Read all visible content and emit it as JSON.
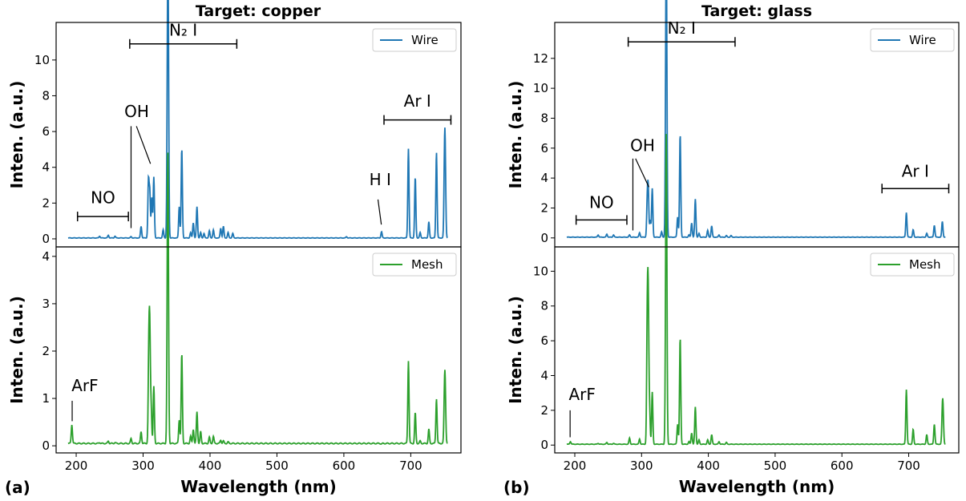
{
  "panel_letters": [
    "(a)",
    "(b)"
  ],
  "chart_data": [
    {
      "type": "line",
      "title": "Target: copper",
      "xlabel": "Wavelength (nm)",
      "xlim": [
        170,
        775
      ],
      "xticks": [
        200,
        300,
        400,
        500,
        600,
        700
      ],
      "subplots": [
        {
          "ylabel": "Inten. (a.u.)",
          "ylim": [
            -0.45,
            12.1
          ],
          "yticks": [
            0,
            2,
            4,
            6,
            8,
            10
          ],
          "color": "#1f77b4",
          "legend": "Wire",
          "legend_loc": "upper right",
          "baseline": 0.05,
          "peaks": [
            [
              235,
              0.15
            ],
            [
              248,
              0.2
            ],
            [
              258,
              0.15
            ],
            [
              282,
              0.12
            ],
            [
              297,
              0.7
            ],
            [
              308,
              3.25
            ],
            [
              310,
              2.6
            ],
            [
              313,
              2.3
            ],
            [
              316,
              3.45
            ],
            [
              330,
              0.5
            ],
            [
              336.5,
              8.1
            ],
            [
              337.5,
              10.6
            ],
            [
              354,
              1.8
            ],
            [
              357.8,
              5.05
            ],
            [
              371,
              0.35
            ],
            [
              375,
              0.9
            ],
            [
              380.5,
              1.8
            ],
            [
              386,
              0.35
            ],
            [
              391,
              0.3
            ],
            [
              399,
              0.45
            ],
            [
              405,
              0.5
            ],
            [
              416,
              0.6
            ],
            [
              420,
              0.7
            ],
            [
              427,
              0.35
            ],
            [
              434,
              0.3
            ],
            [
              604,
              0.12
            ],
            [
              656.3,
              0.4
            ],
            [
              696.5,
              5.05
            ],
            [
              706.7,
              3.45
            ],
            [
              714,
              0.35
            ],
            [
              727,
              0.95
            ],
            [
              738.4,
              4.85
            ],
            [
              750.4,
              3.75
            ],
            [
              751.5,
              3.8
            ]
          ],
          "annotations": [
            {
              "text": "N₂ I",
              "type": "bracket",
              "x1": 280,
              "x2": 440,
              "y": 10.9,
              "text_y": 11.35
            },
            {
              "text": "NO",
              "type": "bracket",
              "x1": 202,
              "x2": 278,
              "y": 1.25,
              "text_y": 2.0
            },
            {
              "text": "OH",
              "type": "label",
              "x": 272,
              "y": 6.8,
              "lines": [
                [
                  282,
                  6.3,
                  282,
                  0.6
                ],
                [
                  290,
                  6.3,
                  311,
                  4.2
                ]
              ]
            },
            {
              "text": "H I",
              "type": "label",
              "x": 638,
              "y": 3.0,
              "lines": [
                [
                  651,
                  2.2,
                  656,
                  0.8
                ]
              ]
            },
            {
              "text": "Ar I",
              "type": "bracket",
              "x1": 660,
              "x2": 760,
              "y": 6.65,
              "text_y": 7.4
            }
          ],
          "x_end": 755
        },
        {
          "ylabel": "Inten. (a.u.)",
          "ylim": [
            -0.15,
            4.2
          ],
          "yticks": [
            0,
            1,
            2,
            3,
            4
          ],
          "color": "#2ca02c",
          "legend": "Mesh",
          "legend_loc": "upper right",
          "baseline": 0.05,
          "peaks": [
            [
              193.5,
              0.45
            ],
            [
              235,
              0.07
            ],
            [
              248,
              0.1
            ],
            [
              258,
              0.07
            ],
            [
              282,
              0.15
            ],
            [
              297,
              0.3
            ],
            [
              308.5,
              1.9
            ],
            [
              310,
              2.25
            ],
            [
              312,
              0.8
            ],
            [
              316,
              1.25
            ],
            [
              336.5,
              2.9
            ],
            [
              337.3,
              3.95
            ],
            [
              354,
              0.55
            ],
            [
              357.8,
              1.95
            ],
            [
              371,
              0.2
            ],
            [
              375,
              0.35
            ],
            [
              380.5,
              0.72
            ],
            [
              386,
              0.3
            ],
            [
              399,
              0.18
            ],
            [
              405,
              0.2
            ],
            [
              416,
              0.12
            ],
            [
              420,
              0.1
            ],
            [
              427,
              0.08
            ],
            [
              656.3,
              0.04
            ],
            [
              696.5,
              1.8
            ],
            [
              706.7,
              0.7
            ],
            [
              714,
              0.1
            ],
            [
              727,
              0.35
            ],
            [
              738.4,
              1.0
            ],
            [
              750.4,
              0.98
            ],
            [
              751.5,
              1.0
            ]
          ],
          "annotations": [
            {
              "text": "ArF",
              "type": "label",
              "x": 193,
              "y": 1.15,
              "lines": [
                [
                  194,
                  0.95,
                  194,
                  0.52
                ]
              ]
            }
          ],
          "x_end": 755
        }
      ]
    },
    {
      "type": "line",
      "title": "Target: glass",
      "xlabel": "Wavelength (nm)",
      "xlim": [
        170,
        775
      ],
      "xticks": [
        200,
        300,
        400,
        500,
        600,
        700
      ],
      "subplots": [
        {
          "ylabel": "Inten. (a.u.)",
          "ylim": [
            -0.6,
            14.4
          ],
          "yticks": [
            0,
            2,
            4,
            6,
            8,
            10,
            12
          ],
          "color": "#1f77b4",
          "legend": "Wire",
          "legend_loc": "upper right",
          "baseline": 0.05,
          "peaks": [
            [
              235,
              0.2
            ],
            [
              248,
              0.25
            ],
            [
              258,
              0.2
            ],
            [
              282,
              0.2
            ],
            [
              297,
              0.35
            ],
            [
              308.5,
              2.3
            ],
            [
              310,
              3.1
            ],
            [
              313,
              1.2
            ],
            [
              316,
              3.3
            ],
            [
              330,
              0.4
            ],
            [
              336.5,
              9.5
            ],
            [
              337.3,
              12.5
            ],
            [
              354,
              1.4
            ],
            [
              357.8,
              6.95
            ],
            [
              371,
              0.2
            ],
            [
              375,
              1.0
            ],
            [
              380.5,
              2.6
            ],
            [
              386,
              0.3
            ],
            [
              399,
              0.5
            ],
            [
              405,
              0.8
            ],
            [
              416,
              0.2
            ],
            [
              427,
              0.15
            ],
            [
              434,
              0.15
            ],
            [
              696.5,
              1.7
            ],
            [
              706.7,
              0.55
            ],
            [
              727,
              0.3
            ],
            [
              738.4,
              0.85
            ],
            [
              750.4,
              1.1
            ]
          ],
          "annotations": [
            {
              "text": "N₂ I",
              "type": "bracket",
              "x1": 280,
              "x2": 440,
              "y": 13.1,
              "text_y": 13.65
            },
            {
              "text": "NO",
              "type": "bracket",
              "x1": 202,
              "x2": 278,
              "y": 1.2,
              "text_y": 2.0
            },
            {
              "text": "OH",
              "type": "label",
              "x": 283,
              "y": 5.8,
              "lines": [
                [
                  287,
                  5.3,
                  287,
                  0.5
                ],
                [
                  291,
                  5.3,
                  311,
                  3.4
                ]
              ]
            },
            {
              "text": "Ar I",
              "type": "bracket",
              "x1": 660,
              "x2": 760,
              "y": 3.3,
              "text_y": 4.1
            }
          ],
          "x_end": 755
        },
        {
          "ylabel": "Inten. (a.u.)",
          "ylim": [
            -0.45,
            11.4
          ],
          "yticks": [
            0,
            2,
            4,
            6,
            8,
            10
          ],
          "color": "#2ca02c",
          "legend": "Mesh",
          "legend_loc": "upper right",
          "baseline": 0.05,
          "peaks": [
            [
              193.5,
              0.2
            ],
            [
              235,
              0.1
            ],
            [
              248,
              0.15
            ],
            [
              258,
              0.1
            ],
            [
              282,
              0.4
            ],
            [
              297,
              0.35
            ],
            [
              308.5,
              6.7
            ],
            [
              310,
              7.7
            ],
            [
              312,
              2.0
            ],
            [
              316,
              3.05
            ],
            [
              336.5,
              8.5
            ],
            [
              337.3,
              11.25
            ],
            [
              354,
              1.2
            ],
            [
              357.8,
              6.2
            ],
            [
              371,
              0.2
            ],
            [
              375,
              0.7
            ],
            [
              380.5,
              2.2
            ],
            [
              386,
              0.3
            ],
            [
              399,
              0.3
            ],
            [
              405,
              0.6
            ],
            [
              416,
              0.2
            ],
            [
              427,
              0.15
            ],
            [
              696.5,
              3.2
            ],
            [
              706.7,
              0.9
            ],
            [
              727,
              0.6
            ],
            [
              738.4,
              1.2
            ],
            [
              750.4,
              1.7
            ],
            [
              751.5,
              1.6
            ]
          ],
          "annotations": [
            {
              "text": "ArF",
              "type": "label",
              "x": 191,
              "y": 2.6,
              "lines": [
                [
                  193,
                  2.0,
                  193,
                  0.45
                ]
              ]
            }
          ],
          "x_end": 755
        }
      ]
    }
  ]
}
